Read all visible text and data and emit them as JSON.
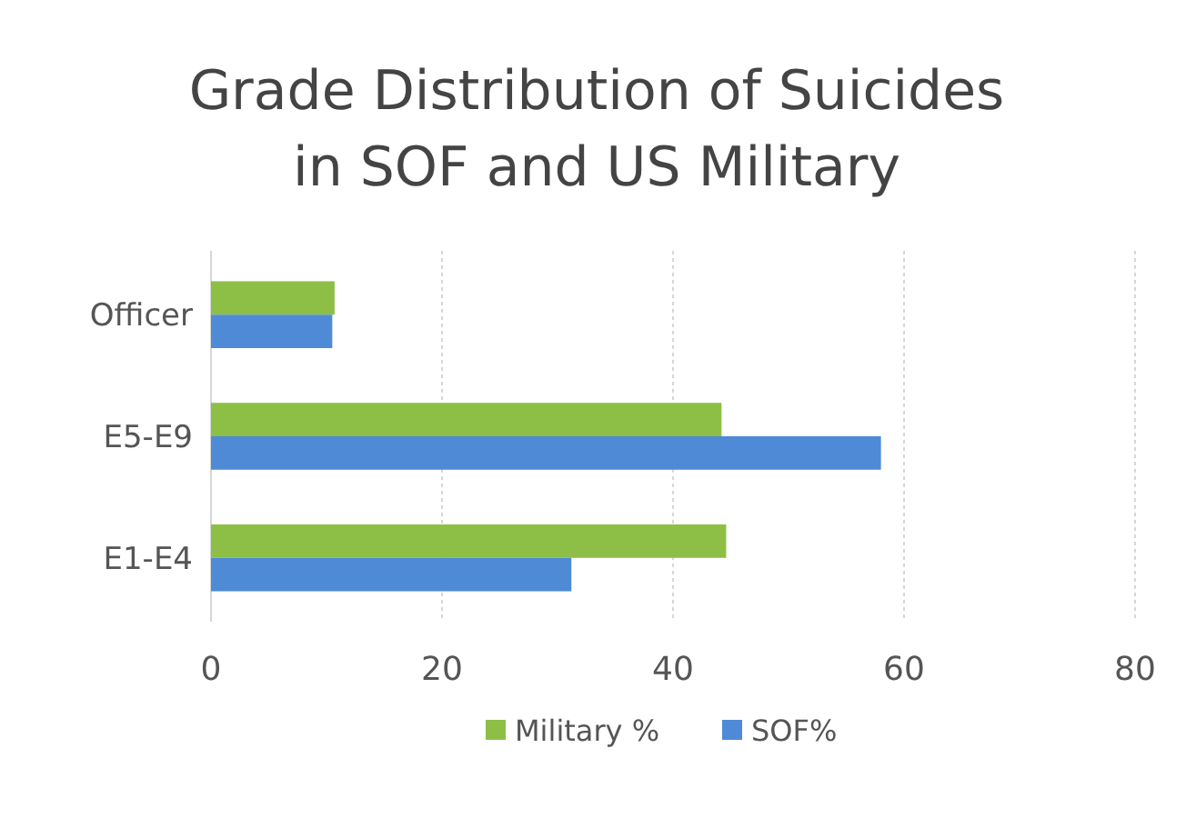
{
  "chart_data": {
    "type": "bar",
    "orientation": "horizontal",
    "title": "Grade Distribution of Suicides in SOF and US Military",
    "categories": [
      "Officer",
      "E5-E9",
      "E1-E4"
    ],
    "series": [
      {
        "name": "Military %",
        "color": "#8dbf46",
        "values": [
          10.7,
          44.2,
          44.6
        ]
      },
      {
        "name": "SOF%",
        "color": "#4f8ad6",
        "values": [
          10.5,
          58.0,
          31.2
        ]
      }
    ],
    "xlim": [
      0,
      80
    ],
    "xticks": [
      0,
      20,
      40,
      60,
      80
    ],
    "grid": "x",
    "legend": "bottom"
  }
}
